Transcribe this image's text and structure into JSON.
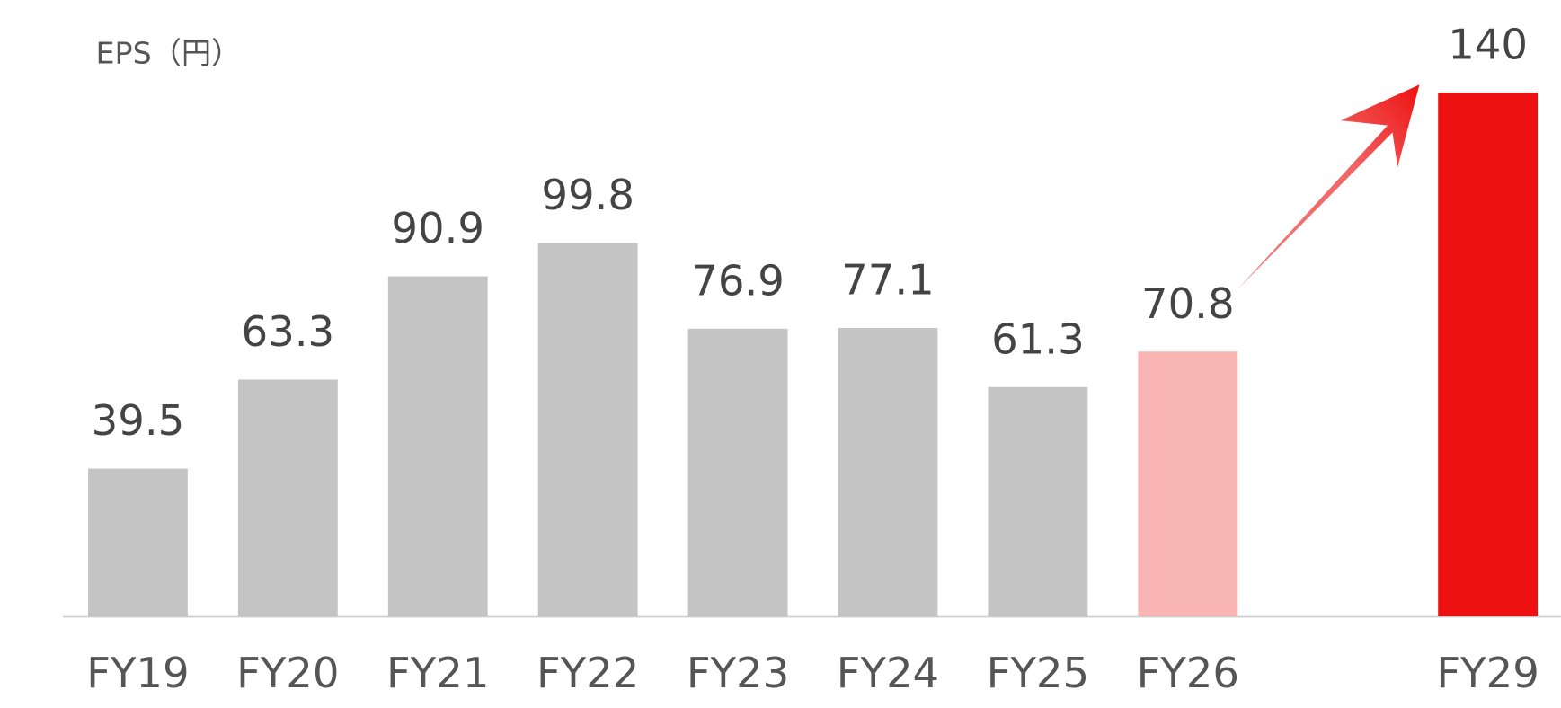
{
  "chart_data": {
    "type": "bar",
    "title": "EPS（円）",
    "categories": [
      "FY19",
      "FY20",
      "FY21",
      "FY22",
      "FY23",
      "FY24",
      "FY25",
      "FY26",
      null,
      "FY29"
    ],
    "values": [
      39.5,
      63.3,
      90.9,
      99.8,
      76.9,
      77.1,
      61.3,
      70.8,
      null,
      140
    ],
    "colors": [
      "#c4c4c4",
      "#c4c4c4",
      "#c4c4c4",
      "#c4c4c4",
      "#c4c4c4",
      "#c4c4c4",
      "#c4c4c4",
      "#f9b4b4",
      null,
      "#ee1111"
    ],
    "ylim": [
      0,
      140
    ]
  }
}
